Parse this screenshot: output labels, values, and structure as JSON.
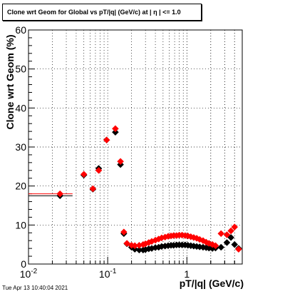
{
  "title": "Clone wrt Geom for Global vs pT/|q| (GeV/c) at |  η | <= 1.0",
  "timestamp": "Tue Apr 13 10:40:04 2021",
  "chart_data": {
    "type": "scatter",
    "title": "Clone wrt Geom for Global vs pT/|q| (GeV/c) at |  η | <= 1.0",
    "xlabel": "pT/|q| (GeV/c)",
    "ylabel": "Clone wrt Geom (%)",
    "x_scale": "log",
    "xlim": [
      0.01,
      5.0
    ],
    "ylim": [
      0,
      60
    ],
    "grid": true,
    "y_ticks": [
      "0",
      "10",
      "20",
      "30",
      "40",
      "50",
      "60"
    ],
    "x_ticks": [
      {
        "label": "10",
        "exp": "-2"
      },
      {
        "label": "10",
        "exp": "-1"
      },
      {
        "label": "1",
        "exp": ""
      }
    ],
    "series": [
      {
        "color": "#000000",
        "marker": "diamond",
        "points": [
          [
            0.025,
            17.5
          ],
          [
            0.05,
            22.8
          ],
          [
            0.065,
            19.2
          ],
          [
            0.077,
            24.5
          ],
          [
            0.097,
            31.8
          ],
          [
            0.125,
            33.8
          ],
          [
            0.145,
            25.5
          ],
          [
            0.16,
            7.8
          ],
          [
            0.175,
            5.2
          ],
          [
            0.2,
            4.3
          ],
          [
            0.22,
            3.8
          ],
          [
            0.25,
            3.6
          ],
          [
            0.28,
            3.6
          ],
          [
            0.3,
            3.7
          ],
          [
            0.33,
            3.9
          ],
          [
            0.36,
            4.0
          ],
          [
            0.4,
            4.2
          ],
          [
            0.44,
            4.3
          ],
          [
            0.48,
            4.5
          ],
          [
            0.53,
            4.6
          ],
          [
            0.58,
            4.7
          ],
          [
            0.63,
            4.8
          ],
          [
            0.68,
            4.8
          ],
          [
            0.74,
            4.9
          ],
          [
            0.8,
            4.9
          ],
          [
            0.87,
            4.9
          ],
          [
            0.95,
            4.9
          ],
          [
            1.03,
            4.8
          ],
          [
            1.12,
            4.7
          ],
          [
            1.22,
            4.6
          ],
          [
            1.33,
            4.5
          ],
          [
            1.45,
            4.4
          ],
          [
            1.6,
            4.3
          ],
          [
            1.75,
            4.2
          ],
          [
            1.9,
            4.1
          ],
          [
            2.1,
            4.0
          ],
          [
            2.3,
            4.1
          ],
          [
            2.7,
            4.3
          ],
          [
            3.2,
            5.5
          ],
          [
            3.6,
            6.8
          ],
          [
            4.0,
            5.0
          ],
          [
            4.5,
            4.0
          ]
        ]
      },
      {
        "color": "#ff0000",
        "marker": "diamond",
        "points": [
          [
            0.025,
            18.0
          ],
          [
            0.05,
            23.0
          ],
          [
            0.065,
            19.3
          ],
          [
            0.077,
            24.0
          ],
          [
            0.097,
            31.8
          ],
          [
            0.125,
            34.7
          ],
          [
            0.145,
            26.3
          ],
          [
            0.16,
            8.2
          ],
          [
            0.175,
            5.3
          ],
          [
            0.2,
            4.8
          ],
          [
            0.22,
            4.7
          ],
          [
            0.25,
            4.8
          ],
          [
            0.28,
            5.0
          ],
          [
            0.3,
            5.2
          ],
          [
            0.33,
            5.5
          ],
          [
            0.36,
            5.8
          ],
          [
            0.4,
            6.1
          ],
          [
            0.44,
            6.4
          ],
          [
            0.48,
            6.7
          ],
          [
            0.53,
            6.9
          ],
          [
            0.58,
            7.1
          ],
          [
            0.63,
            7.2
          ],
          [
            0.68,
            7.3
          ],
          [
            0.74,
            7.3
          ],
          [
            0.8,
            7.4
          ],
          [
            0.87,
            7.4
          ],
          [
            0.95,
            7.3
          ],
          [
            1.03,
            7.2
          ],
          [
            1.12,
            7.0
          ],
          [
            1.22,
            6.8
          ],
          [
            1.33,
            6.6
          ],
          [
            1.45,
            6.3
          ],
          [
            1.6,
            6.0
          ],
          [
            1.75,
            5.6
          ],
          [
            1.9,
            5.3
          ],
          [
            2.1,
            5.0
          ],
          [
            2.3,
            4.7
          ],
          [
            2.7,
            7.8
          ],
          [
            3.2,
            7.5
          ],
          [
            3.6,
            8.5
          ],
          [
            4.0,
            9.5
          ],
          [
            4.5,
            3.8
          ]
        ]
      }
    ]
  }
}
